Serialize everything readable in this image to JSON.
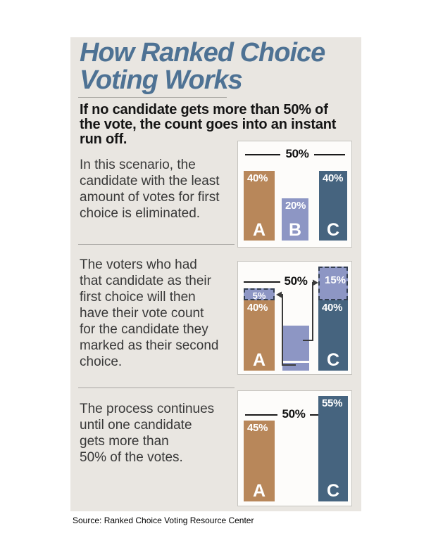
{
  "header": {
    "title": "How Ranked Choice\nVoting Works",
    "intro": "If no candidate gets more than 50% of\nthe vote, the count goes into an instant\nrun off."
  },
  "sections": [
    {
      "text": "In this scenario, the\ncandidate with the least\namount of votes for first\nchoice is eliminated."
    },
    {
      "text": "The voters who had\nthat candidate as their\nfirst choice will then\nhave their vote count\nfor the candidate they\nmarked as their second\nchoice."
    },
    {
      "text": "The process continues\nuntil one candidate\ngets more than\n50% of the votes."
    }
  ],
  "footer": {
    "source": "Source: Ranked Choice Voting Resource Center"
  },
  "colors": {
    "title": "#4e7294",
    "card_background": "#e9e6e1",
    "candidate_a": "#b8875a",
    "candidate_b": "#8d96c4",
    "candidate_c": "#46647f",
    "transfer_fill": "#8d96c4",
    "transfer_border": "#333f52",
    "threshold_line": "#1a1a1a"
  },
  "chart_data": [
    {
      "type": "bar",
      "title": "First choice count",
      "threshold_label": "50%",
      "threshold_value": 50,
      "categories": [
        "A",
        "B",
        "C"
      ],
      "bars": [
        {
          "name": "A",
          "value": 40,
          "label": "40%"
        },
        {
          "name": "B",
          "value": 20,
          "label": "20%"
        },
        {
          "name": "C",
          "value": 40,
          "label": "40%"
        }
      ],
      "ylim": [
        0,
        60
      ],
      "grid": false,
      "legend": false
    },
    {
      "type": "bar",
      "title": "Instant run off: B eliminated, votes transfer",
      "threshold_label": "50%",
      "threshold_value": 50,
      "categories": [
        "A",
        "C"
      ],
      "bars": [
        {
          "name": "A",
          "value": 40,
          "label": "40%"
        },
        {
          "name": "C",
          "value": 40,
          "label": "40%"
        }
      ],
      "transfers": [
        {
          "to": "A",
          "value": 5,
          "label": "5%"
        },
        {
          "to": "C",
          "value": 15,
          "label": "15%"
        }
      ],
      "eliminated": {
        "name": "B",
        "value": 20,
        "split": [
          15,
          5
        ]
      },
      "ylim": [
        0,
        60
      ],
      "grid": false,
      "legend": false
    },
    {
      "type": "bar",
      "title": "Final count",
      "threshold_label": "50%",
      "threshold_value": 50,
      "categories": [
        "A",
        "C"
      ],
      "bars": [
        {
          "name": "A",
          "value": 45,
          "label": "45%"
        },
        {
          "name": "C",
          "value": 55,
          "label": "55%"
        }
      ],
      "ylim": [
        0,
        60
      ],
      "grid": false,
      "legend": false
    }
  ]
}
